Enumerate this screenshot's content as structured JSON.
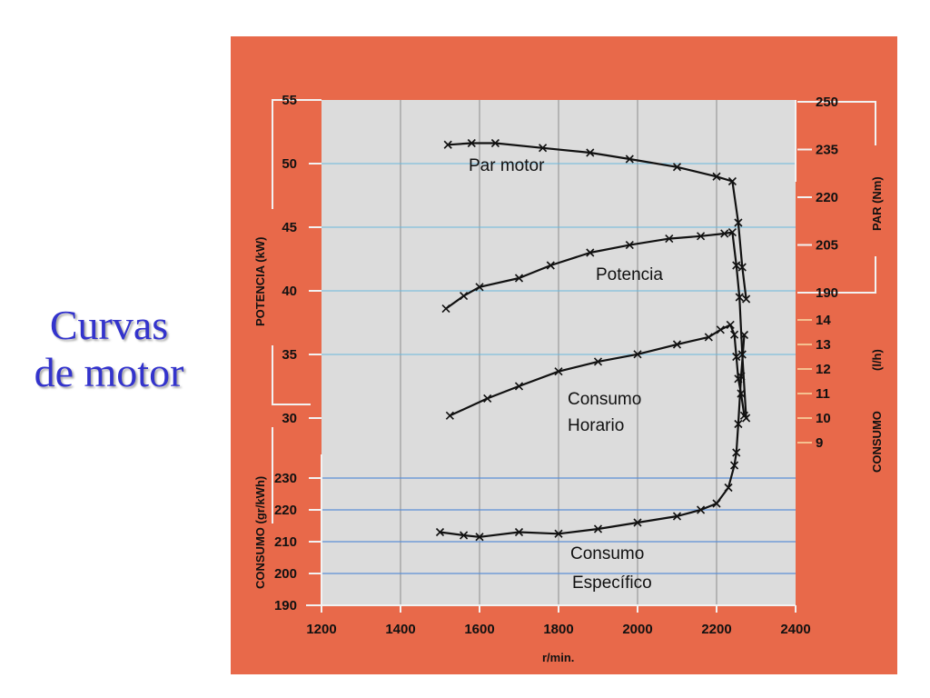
{
  "slide": {
    "title_line1": "Curvas",
    "title_line2": "de motor"
  },
  "chart_data": {
    "type": "line",
    "title": "",
    "xlabel": "r/min.",
    "xlim": [
      1200,
      2400
    ],
    "x_ticks": [
      "1200",
      "1400",
      "1600",
      "1800",
      "2000",
      "2200",
      "2400"
    ],
    "axes": {
      "potencia": {
        "label": "POTENCIA (kW)",
        "ylim": [
          30,
          55
        ],
        "ticks": [
          "30",
          "35",
          "40",
          "45",
          "50",
          "55"
        ]
      },
      "consumo_especifico": {
        "label": "CONSUMO (gr/kWh)",
        "ylim": [
          190,
          230
        ],
        "ticks": [
          "190",
          "200",
          "210",
          "220",
          "230"
        ]
      },
      "par": {
        "label": "PAR (Nm)",
        "ylim": [
          190,
          250
        ],
        "ticks": [
          "190",
          "205",
          "220",
          "235",
          "250"
        ]
      },
      "consumo_horario": {
        "label": "CONSUMO",
        "unit": "(l/h)",
        "ylim": [
          9,
          14
        ],
        "ticks": [
          "9",
          "10",
          "11",
          "12",
          "13",
          "14"
        ]
      }
    },
    "grid": true,
    "series": [
      {
        "name": "Par motor",
        "axis": "par",
        "points": [
          [
            1520,
            236.5
          ],
          [
            1580,
            237
          ],
          [
            1640,
            237
          ],
          [
            1760,
            235.5
          ],
          [
            1880,
            234
          ],
          [
            1980,
            232
          ],
          [
            2100,
            229.5
          ],
          [
            2200,
            226.5
          ],
          [
            2240,
            225
          ],
          [
            2255,
            212
          ],
          [
            2265,
            198
          ],
          [
            2275,
            188
          ]
        ]
      },
      {
        "name": "Potencia",
        "axis": "potencia",
        "points": [
          [
            1515,
            38.6
          ],
          [
            1560,
            39.6
          ],
          [
            1600,
            40.3
          ],
          [
            1700,
            41
          ],
          [
            1780,
            42
          ],
          [
            1880,
            43
          ],
          [
            1980,
            43.6
          ],
          [
            2080,
            44.1
          ],
          [
            2160,
            44.3
          ],
          [
            2220,
            44.5
          ],
          [
            2240,
            44.6
          ],
          [
            2250,
            42
          ],
          [
            2258,
            39.5
          ],
          [
            2265,
            35
          ],
          [
            2275,
            30
          ]
        ]
      },
      {
        "name": "Consumo Horario",
        "axis": "consumo_horario",
        "points": [
          [
            1525,
            10.1
          ],
          [
            1620,
            10.8
          ],
          [
            1700,
            11.3
          ],
          [
            1800,
            11.9
          ],
          [
            1900,
            12.3
          ],
          [
            2000,
            12.6
          ],
          [
            2100,
            13
          ],
          [
            2180,
            13.3
          ],
          [
            2210,
            13.6
          ],
          [
            2235,
            13.8
          ],
          [
            2245,
            13.4
          ],
          [
            2250,
            12.5
          ],
          [
            2255,
            11.6
          ],
          [
            2262,
            11
          ],
          [
            2270,
            10.1
          ]
        ]
      },
      {
        "name": "Consumo Específico",
        "axis": "consumo_especifico",
        "points": [
          [
            1500,
            213
          ],
          [
            1560,
            212
          ],
          [
            1600,
            211.5
          ],
          [
            1700,
            213
          ],
          [
            1800,
            212.5
          ],
          [
            1900,
            214
          ],
          [
            2000,
            216
          ],
          [
            2100,
            218
          ],
          [
            2160,
            220
          ],
          [
            2200,
            222
          ],
          [
            2230,
            227
          ],
          [
            2245,
            234
          ],
          [
            2250,
            238
          ],
          [
            2255,
            247
          ],
          [
            2262,
            262
          ],
          [
            2270,
            275
          ]
        ]
      }
    ],
    "annotations": [
      {
        "text": "Par motor",
        "series": "Par motor"
      },
      {
        "text": "Potencia",
        "series": "Potencia"
      },
      {
        "text": "Consumo",
        "series": "Consumo Horario"
      },
      {
        "text": "Horario",
        "series": "Consumo Horario"
      },
      {
        "text": "Consumo",
        "series": "Consumo Específico"
      },
      {
        "text": "Específico",
        "series": "Consumo Específico"
      }
    ],
    "colors": {
      "panel": "#e8694a",
      "plot": "#dcdcdc",
      "axis_line": "#f2f2f2",
      "potencia_grid": "#6ab7dc",
      "consumo_grid": "#5b8fd6",
      "vertical_grid": "#999999",
      "curves": "#111111"
    }
  }
}
